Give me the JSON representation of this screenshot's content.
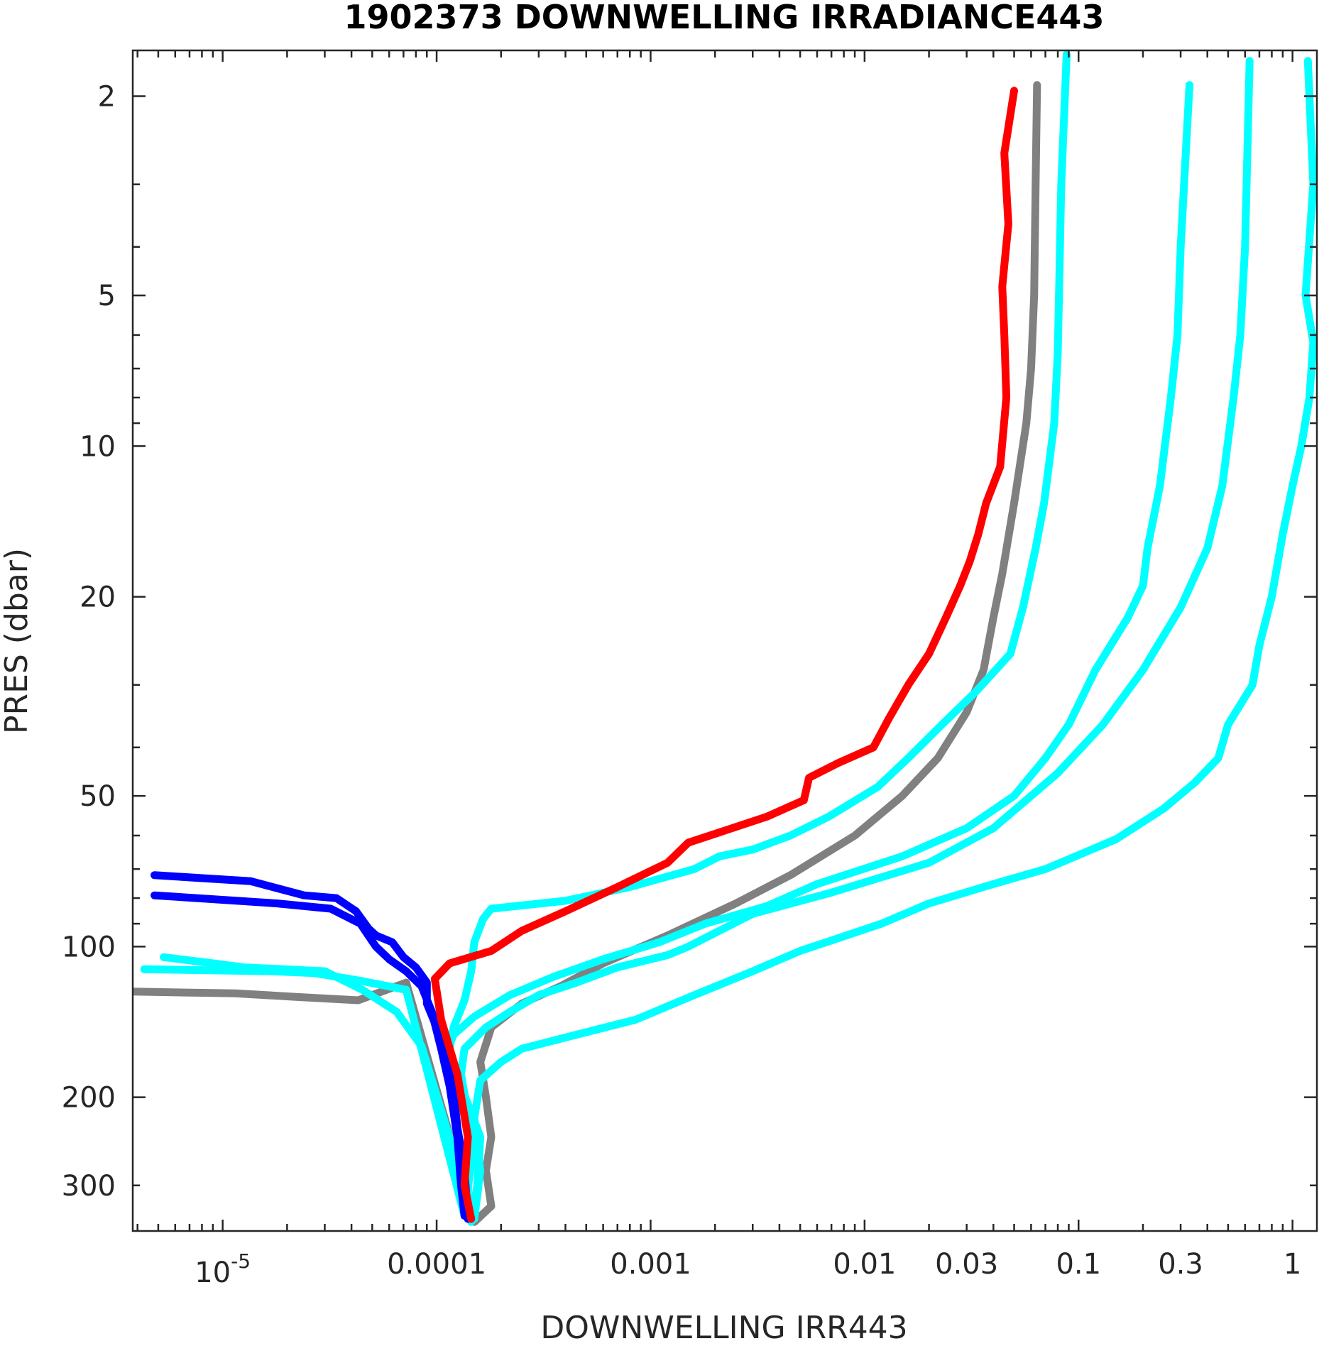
{
  "chart_data": {
    "type": "line",
    "title": "1902373  DOWNWELLING IRRADIANCE443",
    "xlabel": "DOWNWELLING IRR443",
    "ylabel": "PRES (dbar)",
    "xscale": "log",
    "yscale": "log",
    "y_reversed": true,
    "xlim": [
      3.8e-06,
      1.3
    ],
    "ylim": [
      1.62,
      370
    ],
    "grid": false,
    "x_ticks": [
      {
        "value": 1e-05,
        "base": "10",
        "exp": "-5"
      },
      {
        "value": 0.0001,
        "label": "0.0001"
      },
      {
        "value": 0.001,
        "label": "0.001"
      },
      {
        "value": 0.01,
        "label": "0.01"
      },
      {
        "value": 0.03,
        "label": "0.03"
      },
      {
        "value": 0.1,
        "label": "0.1"
      },
      {
        "value": 0.3,
        "label": "0.3"
      },
      {
        "value": 1,
        "label": "1"
      }
    ],
    "y_ticks": [
      {
        "value": 2,
        "label": "2"
      },
      {
        "value": 5,
        "label": "5"
      },
      {
        "value": 10,
        "label": "10"
      },
      {
        "value": 20,
        "label": "20"
      },
      {
        "value": 50,
        "label": "50"
      },
      {
        "value": 100,
        "label": "100"
      },
      {
        "value": 200,
        "label": "200"
      },
      {
        "value": 300,
        "label": "300"
      }
    ],
    "series": [
      {
        "color": "#808080",
        "points": [
          [
            0.064,
            1.9
          ],
          [
            0.063,
            3
          ],
          [
            0.062,
            5
          ],
          [
            0.06,
            7
          ],
          [
            0.057,
            9
          ],
          [
            0.05,
            13
          ],
          [
            0.044,
            18
          ],
          [
            0.04,
            22
          ],
          [
            0.036,
            28
          ],
          [
            0.03,
            34
          ],
          [
            0.022,
            42
          ],
          [
            0.015,
            50
          ],
          [
            0.009,
            60
          ],
          [
            0.0045,
            72
          ],
          [
            0.0025,
            82
          ],
          [
            0.0012,
            95
          ],
          [
            0.0006,
            108
          ],
          [
            0.00038,
            120
          ],
          [
            0.00025,
            130
          ],
          [
            0.00018,
            145
          ],
          [
            0.00016,
            170
          ],
          [
            0.00017,
            200
          ],
          [
            0.00018,
            240
          ],
          [
            0.00017,
            280
          ],
          [
            0.00018,
            330
          ],
          [
            0.00015,
            355
          ],
          [
            7.2e-05,
            118
          ],
          [
            4.3e-05,
            128
          ],
          [
            2.2e-05,
            126
          ],
          [
            1.15e-05,
            124
          ],
          [
            3.8e-06,
            123
          ]
        ]
      },
      {
        "color": "#00ffff",
        "points": [
          [
            0.088,
            1.65
          ],
          [
            0.083,
            3
          ],
          [
            0.081,
            5
          ],
          [
            0.08,
            6.5
          ],
          [
            0.077,
            9
          ],
          [
            0.069,
            13
          ],
          [
            0.063,
            16
          ],
          [
            0.055,
            21
          ],
          [
            0.048,
            26
          ],
          [
            0.033,
            31
          ],
          [
            0.023,
            36
          ],
          [
            0.016,
            42
          ],
          [
            0.0115,
            48
          ],
          [
            0.0068,
            55
          ],
          [
            0.0045,
            60
          ],
          [
            0.003,
            64
          ],
          [
            0.0021,
            66
          ],
          [
            0.0016,
            70
          ],
          [
            0.0008,
            76
          ],
          [
            0.0004,
            81
          ],
          [
            0.00018,
            84
          ],
          [
            0.000165,
            88
          ],
          [
            0.00015,
            98
          ],
          [
            0.000145,
            112
          ],
          [
            0.000135,
            128
          ],
          [
            0.00012,
            145
          ],
          [
            0.000115,
            160
          ],
          [
            0.00013,
            190
          ],
          [
            0.00016,
            240
          ],
          [
            0.000155,
            300
          ],
          [
            0.000145,
            355
          ]
        ]
      },
      {
        "color": "#00ffff",
        "points": [
          [
            0.33,
            1.9
          ],
          [
            0.3,
            4
          ],
          [
            0.29,
            6
          ],
          [
            0.27,
            8
          ],
          [
            0.24,
            12
          ],
          [
            0.21,
            16
          ],
          [
            0.2,
            19
          ],
          [
            0.17,
            22
          ],
          [
            0.12,
            28
          ],
          [
            0.09,
            36
          ],
          [
            0.07,
            42
          ],
          [
            0.05,
            50
          ],
          [
            0.03,
            58
          ],
          [
            0.015,
            66
          ],
          [
            0.006,
            75
          ],
          [
            0.0035,
            83
          ],
          [
            0.0018,
            90
          ],
          [
            0.0011,
            98
          ],
          [
            0.0006,
            106
          ],
          [
            0.00035,
            115
          ],
          [
            0.00022,
            125
          ],
          [
            0.00015,
            138
          ],
          [
            0.00012,
            150
          ],
          [
            0.00011,
            165
          ],
          [
            0.00013,
            190
          ],
          [
            0.00015,
            230
          ],
          [
            0.00014,
            300
          ],
          [
            0.00014,
            350
          ]
        ]
      },
      {
        "color": "#00ffff",
        "points": [
          [
            0.63,
            1.7
          ],
          [
            0.6,
            4
          ],
          [
            0.57,
            6
          ],
          [
            0.53,
            8
          ],
          [
            0.47,
            12
          ],
          [
            0.4,
            16
          ],
          [
            0.3,
            21
          ],
          [
            0.2,
            28
          ],
          [
            0.13,
            36
          ],
          [
            0.08,
            45
          ],
          [
            0.04,
            58
          ],
          [
            0.02,
            68
          ],
          [
            0.007,
            78
          ],
          [
            0.003,
            86
          ],
          [
            0.0015,
            100
          ],
          [
            0.0012,
            104
          ],
          [
            0.0007,
            110
          ],
          [
            0.00045,
            118
          ],
          [
            0.0003,
            125
          ],
          [
            0.00022,
            135
          ],
          [
            0.00017,
            145
          ],
          [
            0.000135,
            160
          ],
          [
            0.00013,
            180
          ],
          [
            0.00014,
            215
          ],
          [
            0.000145,
            270
          ],
          [
            0.000135,
            345
          ],
          [
            7.2e-05,
            122
          ],
          [
            4.4e-05,
            117
          ],
          [
            2.7e-05,
            113
          ],
          [
            1.7e-05,
            112
          ],
          [
            4.3e-06,
            111
          ]
        ]
      },
      {
        "color": "#00ffff",
        "points": [
          [
            1.18,
            1.7
          ],
          [
            1.25,
            3
          ],
          [
            1.15,
            5
          ],
          [
            1.25,
            6.2
          ],
          [
            1.2,
            8
          ],
          [
            1.1,
            10
          ],
          [
            1.0,
            12
          ],
          [
            0.9,
            15
          ],
          [
            0.8,
            20
          ],
          [
            0.7,
            25
          ],
          [
            0.65,
            30
          ],
          [
            0.5,
            36
          ],
          [
            0.45,
            42
          ],
          [
            0.35,
            47
          ],
          [
            0.25,
            53
          ],
          [
            0.15,
            61
          ],
          [
            0.07,
            70
          ],
          [
            0.04,
            75
          ],
          [
            0.02,
            82
          ],
          [
            0.012,
            90
          ],
          [
            0.005,
            102
          ],
          [
            0.003,
            112
          ],
          [
            0.0016,
            125
          ],
          [
            0.00085,
            140
          ],
          [
            0.00045,
            150
          ],
          [
            0.00025,
            160
          ],
          [
            0.0002,
            170
          ],
          [
            0.00016,
            185
          ],
          [
            0.00015,
            220
          ],
          [
            0.00016,
            280
          ],
          [
            0.00015,
            350
          ],
          [
            8.5e-05,
            158
          ],
          [
            6.5e-05,
            135
          ],
          [
            4.5e-05,
            122
          ],
          [
            3e-05,
            112
          ],
          [
            1.25e-05,
            110
          ],
          [
            9e-06,
            108
          ],
          [
            5.3e-06,
            105
          ]
        ]
      },
      {
        "color": "#0000ff",
        "points": [
          [
            4.8e-06,
            72
          ],
          [
            1.35e-05,
            74
          ],
          [
            2.4e-05,
            79
          ],
          [
            3.4e-05,
            80
          ],
          [
            4.2e-05,
            85
          ],
          [
            4.8e-05,
            92
          ],
          [
            5.2e-05,
            95
          ],
          [
            6.2e-05,
            98
          ],
          [
            7e-05,
            105
          ],
          [
            8e-05,
            110
          ],
          [
            9e-05,
            118
          ],
          [
            9e-05,
            130
          ],
          [
            0.0001,
            145
          ],
          [
            0.00011,
            165
          ],
          [
            0.00012,
            195
          ],
          [
            0.000125,
            230
          ],
          [
            0.000135,
            280
          ],
          [
            0.00014,
            350
          ]
        ]
      },
      {
        "color": "#0000ff",
        "points": [
          [
            4.8e-06,
            79
          ],
          [
            1.8e-05,
            82
          ],
          [
            3.2e-05,
            84
          ],
          [
            4.4e-05,
            90
          ],
          [
            5.2e-05,
            100
          ],
          [
            6e-05,
            106
          ],
          [
            7.2e-05,
            112
          ],
          [
            8.5e-05,
            120
          ],
          [
            9.5e-05,
            135
          ],
          [
            0.000105,
            160
          ],
          [
            0.000115,
            190
          ],
          [
            0.000125,
            240
          ],
          [
            0.00013,
            300
          ],
          [
            0.000135,
            345
          ]
        ]
      },
      {
        "color": "#ff0000",
        "points": [
          [
            0.05,
            1.95
          ],
          [
            0.045,
            2.6
          ],
          [
            0.047,
            3.6
          ],
          [
            0.044,
            4.8
          ],
          [
            0.045,
            6
          ],
          [
            0.046,
            8
          ],
          [
            0.043,
            11
          ],
          [
            0.037,
            13
          ],
          [
            0.034,
            15
          ],
          [
            0.031,
            17
          ],
          [
            0.028,
            19
          ],
          [
            0.024,
            22
          ],
          [
            0.02,
            26
          ],
          [
            0.016,
            30
          ],
          [
            0.013,
            35
          ],
          [
            0.011,
            40
          ],
          [
            0.0075,
            43
          ],
          [
            0.0055,
            46
          ],
          [
            0.0052,
            51
          ],
          [
            0.0035,
            55
          ],
          [
            0.0015,
            62
          ],
          [
            0.0012,
            68
          ],
          [
            0.0007,
            76
          ],
          [
            0.0004,
            85
          ],
          [
            0.00025,
            93
          ],
          [
            0.00018,
            102
          ],
          [
            0.000115,
            108
          ],
          [
            9.8e-05,
            116
          ],
          [
            0.000105,
            140
          ],
          [
            0.000125,
            180
          ],
          [
            0.00014,
            240
          ],
          [
            0.000135,
            300
          ],
          [
            0.000145,
            350
          ]
        ]
      }
    ]
  }
}
